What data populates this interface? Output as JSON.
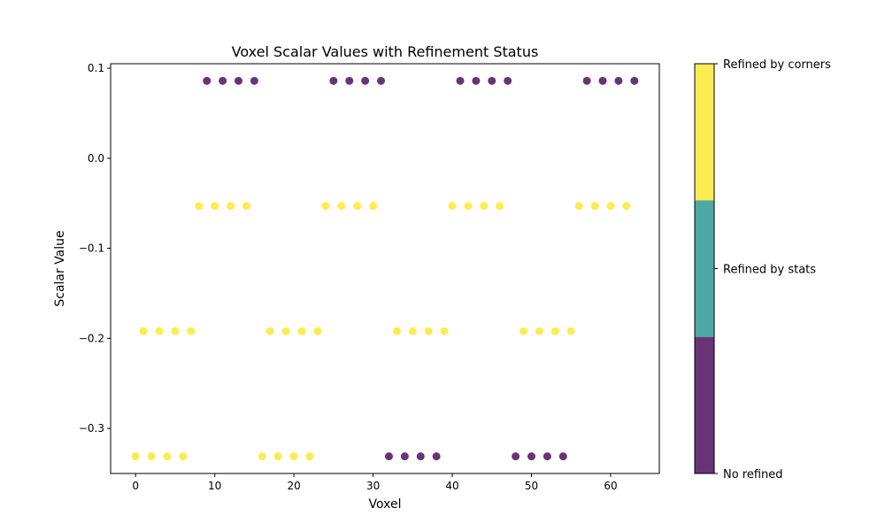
{
  "chart_data": {
    "type": "scatter",
    "title": "Voxel Scalar Values with Refinement Status",
    "xlabel": "Voxel",
    "ylabel": "Scalar Value",
    "xlim": [
      -3.15,
      66.15
    ],
    "ylim": [
      -0.35,
      0.105
    ],
    "xticks": [
      0,
      10,
      20,
      30,
      40,
      50,
      60
    ],
    "xtick_labels": [
      "0",
      "10",
      "20",
      "30",
      "40",
      "50",
      "60"
    ],
    "yticks": [
      -0.3,
      -0.2,
      -0.1,
      0.0,
      0.1
    ],
    "ytick_labels": [
      "−0.3",
      "−0.2",
      "−0.1",
      "0.0",
      "0.1"
    ],
    "grid": false,
    "colorbar": {
      "categories": [
        {
          "label": "No refined",
          "color": "#440154"
        },
        {
          "label": "Refined by stats",
          "color": "#21918c"
        },
        {
          "label": "Refined by corners",
          "color": "#fde725"
        }
      ]
    },
    "point_alpha": 0.8,
    "x": [
      0,
      1,
      2,
      3,
      4,
      5,
      6,
      7,
      8,
      9,
      10,
      11,
      12,
      13,
      14,
      15,
      16,
      17,
      18,
      19,
      20,
      21,
      22,
      23,
      24,
      25,
      26,
      27,
      28,
      29,
      30,
      31,
      32,
      33,
      34,
      35,
      36,
      37,
      38,
      39,
      40,
      41,
      42,
      43,
      44,
      45,
      46,
      47,
      48,
      49,
      50,
      51,
      52,
      53,
      54,
      55,
      56,
      57,
      58,
      59,
      60,
      61,
      62,
      63
    ],
    "y": [
      -0.331,
      -0.192,
      -0.331,
      -0.192,
      -0.331,
      -0.192,
      -0.331,
      -0.192,
      -0.053,
      0.086,
      -0.053,
      0.086,
      -0.053,
      0.086,
      -0.053,
      0.086,
      -0.331,
      -0.192,
      -0.331,
      -0.192,
      -0.331,
      -0.192,
      -0.331,
      -0.192,
      -0.053,
      0.086,
      -0.053,
      0.086,
      -0.053,
      0.086,
      -0.053,
      0.086,
      -0.331,
      -0.192,
      -0.331,
      -0.192,
      -0.331,
      -0.192,
      -0.331,
      -0.192,
      -0.053,
      0.086,
      -0.053,
      0.086,
      -0.053,
      0.086,
      -0.053,
      0.086,
      -0.331,
      -0.192,
      -0.331,
      -0.192,
      -0.331,
      -0.192,
      -0.331,
      -0.192,
      -0.053,
      0.086,
      -0.053,
      0.086,
      -0.053,
      0.086,
      -0.053,
      0.086
    ],
    "status": [
      2,
      2,
      2,
      2,
      2,
      2,
      2,
      2,
      2,
      0,
      2,
      0,
      2,
      0,
      2,
      0,
      2,
      2,
      2,
      2,
      2,
      2,
      2,
      2,
      2,
      0,
      2,
      0,
      2,
      0,
      2,
      0,
      0,
      2,
      0,
      2,
      0,
      2,
      0,
      2,
      2,
      0,
      2,
      0,
      2,
      0,
      2,
      0,
      0,
      2,
      0,
      2,
      0,
      2,
      0,
      2,
      2,
      0,
      2,
      0,
      2,
      0,
      2,
      0
    ]
  }
}
